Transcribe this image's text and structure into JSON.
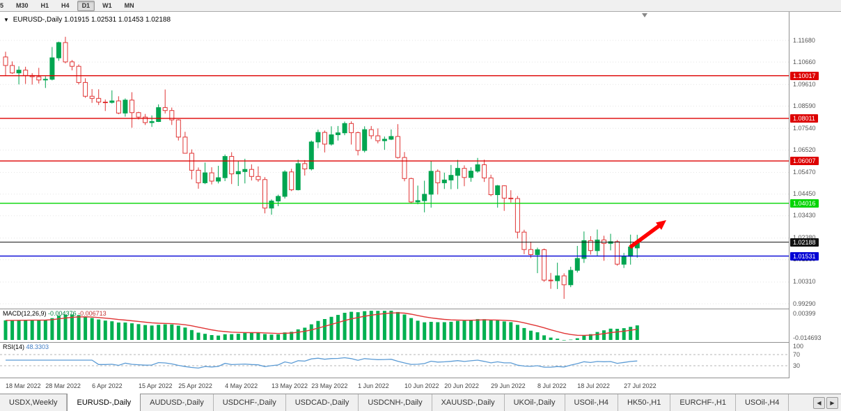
{
  "toolbar": {
    "timeframes": [
      {
        "label": "5",
        "active": false
      },
      {
        "label": "M30",
        "active": false
      },
      {
        "label": "H1",
        "active": false
      },
      {
        "label": "H4",
        "active": false
      },
      {
        "label": "D1",
        "active": true
      },
      {
        "label": "W1",
        "active": false
      },
      {
        "label": "MN",
        "active": false
      }
    ]
  },
  "chart": {
    "title": {
      "collapse_icon": "▼",
      "symbol": "EURUSD-,Daily",
      "open": "1.01915",
      "high": "1.02531",
      "low": "1.01453",
      "close": "1.02188"
    },
    "price_axis_labels": [
      "1.11680",
      "1.10660",
      "1.09610",
      "1.08590",
      "1.07540",
      "1.06520",
      "1.05470",
      "1.04450",
      "1.03430",
      "1.02380",
      "1.01360",
      "1.00310",
      "0.99290"
    ],
    "levels": [
      {
        "label": "1.10017",
        "price": 1.10017,
        "color": "#dd0000",
        "kind": "resistance-line"
      },
      {
        "label": "1.08011",
        "price": 1.08011,
        "color": "#dd0000",
        "kind": "resistance-line"
      },
      {
        "label": "1.06007",
        "price": 1.06007,
        "color": "#dd0000",
        "kind": "resistance-line"
      },
      {
        "label": "1.04016",
        "price": 1.04016,
        "color": "#00d400",
        "kind": "support-line"
      },
      {
        "label": "1.02188",
        "price": 1.02188,
        "color": "#111111",
        "kind": "current-price-line"
      },
      {
        "label": "1.01531",
        "price": 1.01531,
        "color": "#0000d4",
        "kind": "support-line"
      }
    ],
    "trend_arrow": {
      "direction": "up-right",
      "color": "#ff0000"
    }
  },
  "chart_data": {
    "type": "candlestick",
    "symbol": "EURUSD-",
    "timeframe": "Daily",
    "y_axis_range": [
      0.989,
      1.122
    ],
    "date_labels": [
      {
        "label": "18 Mar 2022",
        "i": 0
      },
      {
        "label": "28 Mar 2022",
        "i": 6
      },
      {
        "label": "6 Apr 2022",
        "i": 13
      },
      {
        "label": "15 Apr 2022",
        "i": 20
      },
      {
        "label": "25 Apr 2022",
        "i": 26
      },
      {
        "label": "4 May 2022",
        "i": 33
      },
      {
        "label": "13 May 2022",
        "i": 40
      },
      {
        "label": "23 May 2022",
        "i": 46
      },
      {
        "label": "1 Jun 2022",
        "i": 53
      },
      {
        "label": "10 Jun 2022",
        "i": 60
      },
      {
        "label": "20 Jun 2022",
        "i": 66
      },
      {
        "label": "29 Jun 2022",
        "i": 73
      },
      {
        "label": "8 Jul 2022",
        "i": 80
      },
      {
        "label": "18 Jul 2022",
        "i": 86
      },
      {
        "label": "27 Jul 2022",
        "i": 93
      }
    ],
    "ohlc": [
      [
        1.109,
        1.1115,
        1.1003,
        1.105
      ],
      [
        1.105,
        1.1069,
        1.101,
        1.1015
      ],
      [
        1.1015,
        1.1046,
        1.0961,
        1.1028
      ],
      [
        1.1028,
        1.1044,
        1.0963,
        1.1003
      ],
      [
        1.1003,
        1.1014,
        1.096,
        1.0997
      ],
      [
        1.0997,
        1.1039,
        1.0965,
        1.0982
      ],
      [
        1.0982,
        1.0999,
        1.0944,
        1.0985
      ],
      [
        1.0985,
        1.1137,
        1.098,
        1.1086
      ],
      [
        1.1086,
        1.1162,
        1.1072,
        1.1158
      ],
      [
        1.1158,
        1.1185,
        1.106,
        1.1067
      ],
      [
        1.1067,
        1.1076,
        1.1027,
        1.1046
      ],
      [
        1.1046,
        1.1055,
        1.0961,
        1.097
      ],
      [
        1.097,
        1.099,
        1.0898,
        1.0905
      ],
      [
        1.0905,
        1.0939,
        1.0874,
        1.0895
      ],
      [
        1.0895,
        1.0938,
        1.0864,
        1.0878
      ],
      [
        1.0878,
        1.089,
        1.0836,
        1.0876
      ],
      [
        1.0876,
        1.0933,
        1.0871,
        1.0883
      ],
      [
        1.0883,
        1.0905,
        1.0821,
        1.0826
      ],
      [
        1.0826,
        1.0895,
        1.0809,
        1.0887
      ],
      [
        1.0887,
        1.0924,
        1.0757,
        1.0828
      ],
      [
        1.0828,
        1.0832,
        1.0796,
        1.0807
      ],
      [
        1.0807,
        1.0822,
        1.077,
        1.0781
      ],
      [
        1.0781,
        1.0815,
        1.0761,
        1.0786
      ],
      [
        1.0786,
        1.0867,
        1.0784,
        1.0852
      ],
      [
        1.0852,
        1.0937,
        1.0824,
        1.0838
      ],
      [
        1.0838,
        1.0852,
        1.077,
        1.0794
      ],
      [
        1.0794,
        1.0797,
        1.0697,
        1.0713
      ],
      [
        1.0713,
        1.0738,
        1.0635,
        1.0637
      ],
      [
        1.0637,
        1.0655,
        1.0514,
        1.0557
      ],
      [
        1.0557,
        1.057,
        1.047,
        1.0498
      ],
      [
        1.0498,
        1.0593,
        1.0492,
        1.0545
      ],
      [
        1.0545,
        1.0571,
        1.049,
        1.0506
      ],
      [
        1.0506,
        1.0578,
        1.0495,
        1.0522
      ],
      [
        1.0522,
        1.0631,
        1.0506,
        1.0622
      ],
      [
        1.0622,
        1.0642,
        1.0492,
        1.054
      ],
      [
        1.054,
        1.0599,
        1.0483,
        1.0551
      ],
      [
        1.0551,
        1.0611,
        1.0495,
        1.0561
      ],
      [
        1.0561,
        1.0585,
        1.0509,
        1.0528
      ],
      [
        1.0528,
        1.0575,
        1.0503,
        1.0513
      ],
      [
        1.0513,
        1.0525,
        1.0354,
        1.0379
      ],
      [
        1.0379,
        1.042,
        1.0348,
        1.0412
      ],
      [
        1.0412,
        1.0442,
        1.0388,
        1.0434
      ],
      [
        1.0434,
        1.0557,
        1.0424,
        1.0549
      ],
      [
        1.0549,
        1.0564,
        1.0459,
        1.0465
      ],
      [
        1.0465,
        1.0607,
        1.0462,
        1.0588
      ],
      [
        1.0588,
        1.0605,
        1.0532,
        1.0563
      ],
      [
        1.0563,
        1.0697,
        1.0556,
        1.069
      ],
      [
        1.069,
        1.0748,
        1.0661,
        1.0735
      ],
      [
        1.0735,
        1.0744,
        1.0641,
        1.068
      ],
      [
        1.068,
        1.0764,
        1.0673,
        1.0724
      ],
      [
        1.0724,
        1.0765,
        1.0697,
        1.0733
      ],
      [
        1.0733,
        1.0786,
        1.0722,
        1.0777
      ],
      [
        1.0777,
        1.0787,
        1.0678,
        1.0734
      ],
      [
        1.0734,
        1.0739,
        1.0627,
        1.065
      ],
      [
        1.065,
        1.0764,
        1.0641,
        1.0748
      ],
      [
        1.0748,
        1.0765,
        1.0704,
        1.0719
      ],
      [
        1.0719,
        1.0754,
        1.0684,
        1.0696
      ],
      [
        1.0696,
        1.0716,
        1.0653,
        1.0703
      ],
      [
        1.0703,
        1.0749,
        1.0699,
        1.0716
      ],
      [
        1.0716,
        1.0774,
        1.0612,
        1.0617
      ],
      [
        1.0617,
        1.0643,
        1.0505,
        1.0518
      ],
      [
        1.0518,
        1.0522,
        1.0399,
        1.0408
      ],
      [
        1.0408,
        1.0485,
        1.0397,
        1.0414
      ],
      [
        1.0414,
        1.0508,
        1.0359,
        1.0444
      ],
      [
        1.0444,
        1.0601,
        1.0381,
        1.0552
      ],
      [
        1.0552,
        1.0561,
        1.0443,
        1.0498
      ],
      [
        1.0498,
        1.0546,
        1.0469,
        1.0511
      ],
      [
        1.0511,
        1.0582,
        1.0468,
        1.0533
      ],
      [
        1.0533,
        1.0606,
        1.0469,
        1.0566
      ],
      [
        1.0566,
        1.058,
        1.0482,
        1.0523
      ],
      [
        1.0523,
        1.0571,
        1.0503,
        1.0553
      ],
      [
        1.0553,
        1.0615,
        1.0545,
        1.0583
      ],
      [
        1.0583,
        1.0607,
        1.0502,
        1.0521
      ],
      [
        1.0521,
        1.0536,
        1.0435,
        1.0442
      ],
      [
        1.0442,
        1.0488,
        1.0381,
        1.0484
      ],
      [
        1.0484,
        1.0486,
        1.0366,
        1.0426
      ],
      [
        1.0426,
        1.0463,
        1.0405,
        1.0424
      ],
      [
        1.0424,
        1.0436,
        1.0236,
        1.0266
      ],
      [
        1.0266,
        1.0277,
        1.0162,
        1.0184
      ],
      [
        1.0184,
        1.0221,
        1.0144,
        1.016
      ],
      [
        1.016,
        1.0193,
        1.0073,
        1.0183
      ],
      [
        1.0183,
        1.0189,
        1.0032,
        1.004
      ],
      [
        1.004,
        1.0074,
        0.9999,
        1.0037
      ],
      [
        1.0037,
        1.0122,
        0.9998,
        1.006
      ],
      [
        1.006,
        1.0072,
        0.9952,
        1.0018
      ],
      [
        1.0018,
        1.0103,
        1.0007,
        1.0086
      ],
      [
        1.0086,
        1.0201,
        1.0076,
        1.0142
      ],
      [
        1.0142,
        1.0269,
        1.0121,
        1.0226
      ],
      [
        1.0226,
        1.0247,
        1.016,
        1.0179
      ],
      [
        1.0179,
        1.0278,
        1.0152,
        1.0229
      ],
      [
        1.0229,
        1.0249,
        1.0131,
        1.0213
      ],
      [
        1.0213,
        1.0258,
        1.018,
        1.0221
      ],
      [
        1.0221,
        1.0229,
        1.0108,
        1.0115
      ],
      [
        1.0115,
        1.0168,
        1.0097,
        1.0152
      ],
      [
        1.0152,
        1.0254,
        1.0113,
        1.0196
      ],
      [
        1.01915,
        1.02531,
        1.01453,
        1.02188
      ]
    ]
  },
  "macd": {
    "label": "MACD(12,26,9)",
    "main_value": "-0.004376",
    "signal_value": "-0.006713",
    "axis_top": "0.00399",
    "axis_bottom": "-0.014693",
    "params": {
      "fast": 12,
      "slow": 26,
      "signal": 9
    }
  },
  "rsi": {
    "label": "RSI(14)",
    "value": "48.3303",
    "axis_levels": [
      "100",
      "70",
      "30"
    ],
    "period": 14
  },
  "tabs": {
    "items": [
      {
        "label": "USDX,Weekly",
        "active": false
      },
      {
        "label": "EURUSD-,Daily",
        "active": true
      },
      {
        "label": "AUDUSD-,Daily",
        "active": false
      },
      {
        "label": "USDCHF-,Daily",
        "active": false
      },
      {
        "label": "USDCAD-,Daily",
        "active": false
      },
      {
        "label": "USDCNH-,Daily",
        "active": false
      },
      {
        "label": "XAUUSD-,Daily",
        "active": false
      },
      {
        "label": "UKOil-,Daily",
        "active": false
      },
      {
        "label": "USOil-,H4",
        "active": false
      },
      {
        "label": "HK50-,H1",
        "active": false
      },
      {
        "label": "EURCHF-,H1",
        "active": false
      },
      {
        "label": "USOil-,H4",
        "active": false
      }
    ],
    "scroll_left": "◀",
    "scroll_right": "▶"
  },
  "colors": {
    "background": "#ffffff",
    "panel": "#f0f0f0",
    "grid": "#e4e4e4",
    "bull": "#00a550",
    "bear": "#e03535",
    "macd_hist": "#00b050",
    "macd_signal": "#e03535",
    "rsi_line": "#5b9bd5",
    "rsi_level": "#b5b5b5",
    "axis_text": "#555555",
    "border": "#909090",
    "arrow": "#ff0000"
  }
}
